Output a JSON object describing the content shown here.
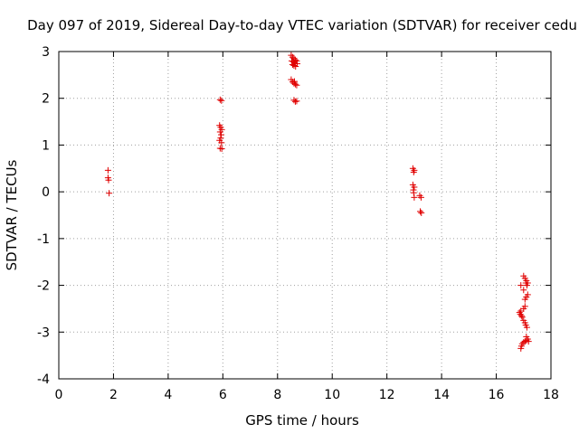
{
  "chart_data": {
    "type": "scatter",
    "title": "Day 097 of 2019, Sidereal Day-to-day VTEC variation (SDTVAR) for receiver cedu",
    "xlabel": "GPS time / hours",
    "ylabel": "SDTVAR / TECUs",
    "xlim": [
      0,
      18
    ],
    "ylim": [
      -4,
      3
    ],
    "xticks": [
      "0",
      "2",
      "4",
      "6",
      "8",
      "10",
      "12",
      "14",
      "16",
      "18"
    ],
    "yticks": [
      "-4",
      "-3",
      "-2",
      "-1",
      "0",
      "1",
      "2",
      "3"
    ],
    "grid": true,
    "marker": "plus",
    "series": [
      {
        "name": "SDTVAR",
        "color": "#e00000",
        "points": [
          [
            1.8,
            0.46
          ],
          [
            1.8,
            0.3
          ],
          [
            1.82,
            0.25
          ],
          [
            1.84,
            -0.03
          ],
          [
            5.9,
            1.97
          ],
          [
            5.95,
            1.95
          ],
          [
            5.88,
            1.42
          ],
          [
            5.92,
            1.38
          ],
          [
            5.96,
            1.33
          ],
          [
            5.9,
            1.28
          ],
          [
            5.94,
            1.22
          ],
          [
            5.92,
            1.15
          ],
          [
            5.88,
            1.1
          ],
          [
            5.95,
            1.05
          ],
          [
            5.9,
            0.93
          ],
          [
            5.96,
            0.92
          ],
          [
            8.5,
            2.92
          ],
          [
            8.55,
            2.88
          ],
          [
            8.6,
            2.85
          ],
          [
            8.65,
            2.82
          ],
          [
            8.52,
            2.8
          ],
          [
            8.58,
            2.78
          ],
          [
            8.62,
            2.76
          ],
          [
            8.7,
            2.8
          ],
          [
            8.55,
            2.72
          ],
          [
            8.6,
            2.7
          ],
          [
            8.66,
            2.68
          ],
          [
            8.72,
            2.74
          ],
          [
            8.5,
            2.4
          ],
          [
            8.55,
            2.35
          ],
          [
            8.6,
            2.32
          ],
          [
            8.65,
            2.3
          ],
          [
            8.7,
            2.28
          ],
          [
            8.62,
            2.36
          ],
          [
            8.6,
            1.96
          ],
          [
            8.65,
            1.93
          ],
          [
            8.7,
            1.94
          ],
          [
            12.95,
            0.5
          ],
          [
            13.0,
            0.46
          ],
          [
            12.98,
            0.42
          ],
          [
            12.95,
            0.15
          ],
          [
            13.0,
            0.1
          ],
          [
            12.97,
            0.04
          ],
          [
            12.98,
            -0.02
          ],
          [
            13.0,
            -0.12
          ],
          [
            13.2,
            -0.08
          ],
          [
            13.25,
            -0.12
          ],
          [
            13.22,
            -0.42
          ],
          [
            13.26,
            -0.45
          ],
          [
            16.9,
            -2.0
          ],
          [
            17.0,
            -1.8
          ],
          [
            17.05,
            -1.85
          ],
          [
            17.1,
            -1.9
          ],
          [
            17.15,
            -1.95
          ],
          [
            17.08,
            -1.95
          ],
          [
            17.12,
            -2.0
          ],
          [
            17.0,
            -2.1
          ],
          [
            17.05,
            -2.3
          ],
          [
            17.1,
            -2.25
          ],
          [
            17.15,
            -2.2
          ],
          [
            17.05,
            -2.45
          ],
          [
            17.0,
            -2.5
          ],
          [
            16.9,
            -2.55
          ],
          [
            16.85,
            -2.58
          ],
          [
            16.88,
            -2.62
          ],
          [
            16.92,
            -2.65
          ],
          [
            16.95,
            -2.68
          ],
          [
            17.0,
            -2.75
          ],
          [
            17.05,
            -2.8
          ],
          [
            17.08,
            -2.85
          ],
          [
            17.12,
            -2.9
          ],
          [
            17.1,
            -3.1
          ],
          [
            17.15,
            -3.15
          ],
          [
            17.05,
            -3.2
          ],
          [
            17.0,
            -3.22
          ],
          [
            16.95,
            -3.25
          ],
          [
            16.92,
            -3.3
          ],
          [
            16.9,
            -3.35
          ],
          [
            17.18,
            -3.2
          ],
          [
            17.1,
            -3.18
          ]
        ]
      }
    ]
  }
}
